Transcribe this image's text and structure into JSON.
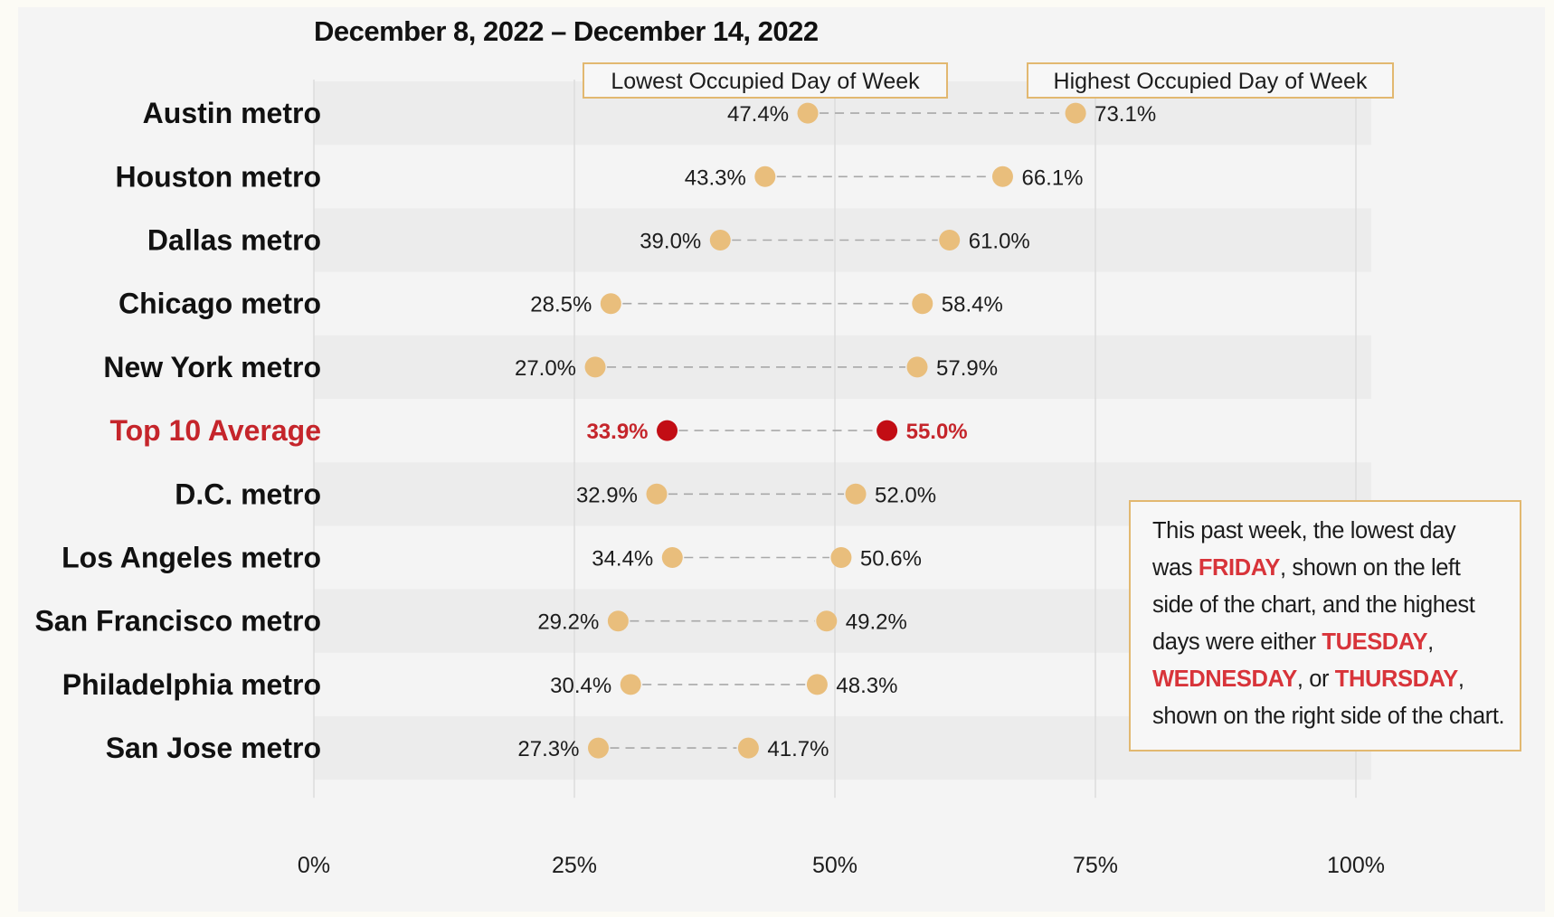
{
  "chart_data": {
    "type": "dumbbell",
    "title": "December 8, 2022 – December 14, 2022",
    "legend": {
      "low": "Lowest Occupied Day of Week",
      "high": "Highest Occupied Day of Week",
      "placement": "top"
    },
    "x_ticks": [
      {
        "value": 0,
        "label": "0%"
      },
      {
        "value": 25,
        "label": "25%"
      },
      {
        "value": 50,
        "label": "50%"
      },
      {
        "value": 75,
        "label": "75%"
      },
      {
        "value": 100,
        "label": "100%"
      }
    ],
    "xlim": [
      0,
      100
    ],
    "grid": true,
    "rows": [
      {
        "name": "Austin metro",
        "low": 47.4,
        "high": 73.1,
        "low_label": "47.4%",
        "high_label": "73.1%",
        "highlight": false
      },
      {
        "name": "Houston metro",
        "low": 43.3,
        "high": 66.1,
        "low_label": "43.3%",
        "high_label": "66.1%",
        "highlight": false
      },
      {
        "name": "Dallas metro",
        "low": 39.0,
        "high": 61.0,
        "low_label": "39.0%",
        "high_label": "61.0%",
        "highlight": false
      },
      {
        "name": "Chicago metro",
        "low": 28.5,
        "high": 58.4,
        "low_label": "28.5%",
        "high_label": "58.4%",
        "highlight": false
      },
      {
        "name": "New York metro",
        "low": 27.0,
        "high": 57.9,
        "low_label": "27.0%",
        "high_label": "57.9%",
        "highlight": false
      },
      {
        "name": "Top 10 Average",
        "low": 33.9,
        "high": 55.0,
        "low_label": "33.9%",
        "high_label": "55.0%",
        "highlight": true
      },
      {
        "name": "D.C. metro",
        "low": 32.9,
        "high": 52.0,
        "low_label": "32.9%",
        "high_label": "52.0%",
        "highlight": false
      },
      {
        "name": "Los Angeles metro",
        "low": 34.4,
        "high": 50.6,
        "low_label": "34.4%",
        "high_label": "50.6%",
        "highlight": false
      },
      {
        "name": "San Francisco metro",
        "low": 29.2,
        "high": 49.2,
        "low_label": "29.2%",
        "high_label": "49.2%",
        "highlight": false
      },
      {
        "name": "Philadelphia metro",
        "low": 30.4,
        "high": 48.3,
        "low_label": "30.4%",
        "high_label": "48.3%",
        "highlight": false
      },
      {
        "name": "San Jose metro",
        "low": 27.3,
        "high": 41.7,
        "low_label": "27.3%",
        "high_label": "41.7%",
        "highlight": false
      }
    ],
    "annotation": {
      "t1": "This past week, the lowest day",
      "t2": "was ",
      "friday": "FRIDAY",
      "t3": ", shown on the left",
      "t4": "side of the chart, and the highest",
      "t5": "days were either ",
      "tuesday": "TUESDAY",
      "t6": ",",
      "wednesday": "WEDNESDAY",
      "t7": ", or ",
      "thursday": "THURSDAY",
      "t8": ",",
      "t9": "shown on the right side of the chart."
    },
    "colors": {
      "dot": "#e9be7c",
      "highlight": "#c20d14",
      "highlight_label": "#c5252b",
      "annotation_highlight": "#d8343a",
      "box_border": "#e2b870",
      "band": "#ececec",
      "text": "#1c1c1c"
    }
  }
}
